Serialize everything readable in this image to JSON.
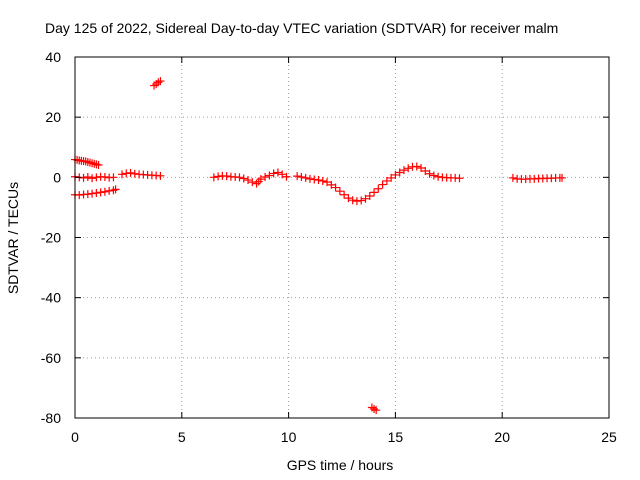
{
  "chart_data": {
    "type": "scatter",
    "title": "Day 125 of 2022, Sidereal Day-to-day VTEC variation (SDTVAR) for receiver malm",
    "xlabel": "GPS time / hours",
    "ylabel": "SDTVAR / TECUs",
    "xlim": [
      0,
      25
    ],
    "ylim": [
      -80,
      40
    ],
    "xticks": [
      0,
      5,
      10,
      15,
      20,
      25
    ],
    "xtick_labels": [
      "0",
      "5",
      "10",
      "15",
      "20",
      "25"
    ],
    "yticks": [
      -80,
      -60,
      -40,
      -20,
      0,
      20,
      40
    ],
    "ytick_labels": [
      "-80",
      "-60",
      "-40",
      "-20",
      "0",
      "20",
      "40"
    ],
    "grid": true,
    "marker": "plus",
    "series": [
      {
        "name": "SDTVAR",
        "color": "#ff0000",
        "points": [
          [
            0.0,
            5.9
          ],
          [
            0.1,
            5.8
          ],
          [
            0.2,
            5.6
          ],
          [
            0.3,
            5.5
          ],
          [
            0.4,
            5.4
          ],
          [
            0.5,
            5.3
          ],
          [
            0.6,
            5.1
          ],
          [
            0.7,
            4.9
          ],
          [
            0.8,
            4.7
          ],
          [
            0.9,
            4.5
          ],
          [
            1.0,
            4.3
          ],
          [
            1.1,
            4.1
          ],
          [
            0.0,
            -5.8
          ],
          [
            0.2,
            -5.9
          ],
          [
            0.4,
            -5.7
          ],
          [
            0.6,
            -5.6
          ],
          [
            0.8,
            -5.4
          ],
          [
            1.0,
            -5.2
          ],
          [
            1.2,
            -5.0
          ],
          [
            1.4,
            -4.8
          ],
          [
            1.6,
            -4.5
          ],
          [
            1.8,
            -4.3
          ],
          [
            1.9,
            -4.0
          ],
          [
            0.0,
            0.2
          ],
          [
            0.2,
            0.0
          ],
          [
            0.4,
            -0.2
          ],
          [
            0.6,
            0.1
          ],
          [
            0.8,
            -0.3
          ],
          [
            1.0,
            0.0
          ],
          [
            1.2,
            0.2
          ],
          [
            1.4,
            0.1
          ],
          [
            1.6,
            -0.1
          ],
          [
            1.8,
            0.0
          ],
          [
            2.2,
            1.0
          ],
          [
            2.4,
            1.3
          ],
          [
            2.6,
            1.5
          ],
          [
            2.8,
            1.2
          ],
          [
            3.0,
            1.0
          ],
          [
            3.2,
            0.9
          ],
          [
            3.4,
            0.8
          ],
          [
            3.6,
            0.7
          ],
          [
            3.8,
            0.6
          ],
          [
            4.0,
            0.5
          ],
          [
            3.7,
            30.5
          ],
          [
            3.8,
            31.0
          ],
          [
            3.9,
            31.6
          ],
          [
            4.0,
            32.0
          ],
          [
            6.5,
            0.0
          ],
          [
            6.7,
            0.3
          ],
          [
            6.9,
            0.5
          ],
          [
            7.1,
            0.4
          ],
          [
            7.3,
            0.2
          ],
          [
            7.5,
            0.1
          ],
          [
            7.7,
            0.0
          ],
          [
            7.9,
            -0.4
          ],
          [
            8.1,
            -0.9
          ],
          [
            8.3,
            -1.6
          ],
          [
            8.5,
            -2.1
          ],
          [
            8.6,
            -1.4
          ],
          [
            8.7,
            -0.6
          ],
          [
            8.9,
            0.1
          ],
          [
            9.1,
            0.6
          ],
          [
            9.3,
            1.3
          ],
          [
            9.5,
            1.6
          ],
          [
            9.7,
            1.0
          ],
          [
            9.9,
            0.2
          ],
          [
            10.4,
            0.4
          ],
          [
            10.6,
            0.1
          ],
          [
            10.8,
            -0.2
          ],
          [
            11.0,
            -0.5
          ],
          [
            11.2,
            -0.7
          ],
          [
            11.4,
            -0.9
          ],
          [
            11.6,
            -1.2
          ],
          [
            11.8,
            -1.6
          ],
          [
            12.0,
            -2.5
          ],
          [
            12.2,
            -3.4
          ],
          [
            12.4,
            -4.6
          ],
          [
            12.6,
            -5.8
          ],
          [
            12.8,
            -6.9
          ],
          [
            13.0,
            -7.6
          ],
          [
            13.2,
            -7.9
          ],
          [
            13.4,
            -7.7
          ],
          [
            13.6,
            -7.1
          ],
          [
            13.8,
            -6.2
          ],
          [
            14.0,
            -5.0
          ],
          [
            14.2,
            -3.8
          ],
          [
            14.4,
            -2.4
          ],
          [
            14.6,
            -1.2
          ],
          [
            14.8,
            -0.2
          ],
          [
            15.0,
            0.8
          ],
          [
            15.2,
            1.6
          ],
          [
            15.4,
            2.4
          ],
          [
            15.6,
            3.0
          ],
          [
            15.8,
            3.5
          ],
          [
            16.0,
            3.6
          ],
          [
            16.2,
            3.1
          ],
          [
            16.4,
            2.1
          ],
          [
            16.6,
            1.2
          ],
          [
            16.8,
            0.6
          ],
          [
            17.0,
            0.2
          ],
          [
            17.2,
            0.0
          ],
          [
            17.4,
            -0.1
          ],
          [
            17.6,
            -0.2
          ],
          [
            17.8,
            -0.2
          ],
          [
            18.0,
            -0.3
          ],
          [
            13.9,
            -76.5
          ],
          [
            14.0,
            -77.0
          ],
          [
            14.1,
            -77.4
          ],
          [
            20.5,
            -0.2
          ],
          [
            20.7,
            -0.5
          ],
          [
            20.9,
            -0.6
          ],
          [
            21.1,
            -0.6
          ],
          [
            21.3,
            -0.5
          ],
          [
            21.5,
            -0.5
          ],
          [
            21.7,
            -0.4
          ],
          [
            21.9,
            -0.4
          ],
          [
            22.1,
            -0.3
          ],
          [
            22.3,
            -0.3
          ],
          [
            22.5,
            -0.2
          ],
          [
            22.7,
            -0.2
          ],
          [
            22.8,
            -0.2
          ]
        ]
      }
    ]
  }
}
